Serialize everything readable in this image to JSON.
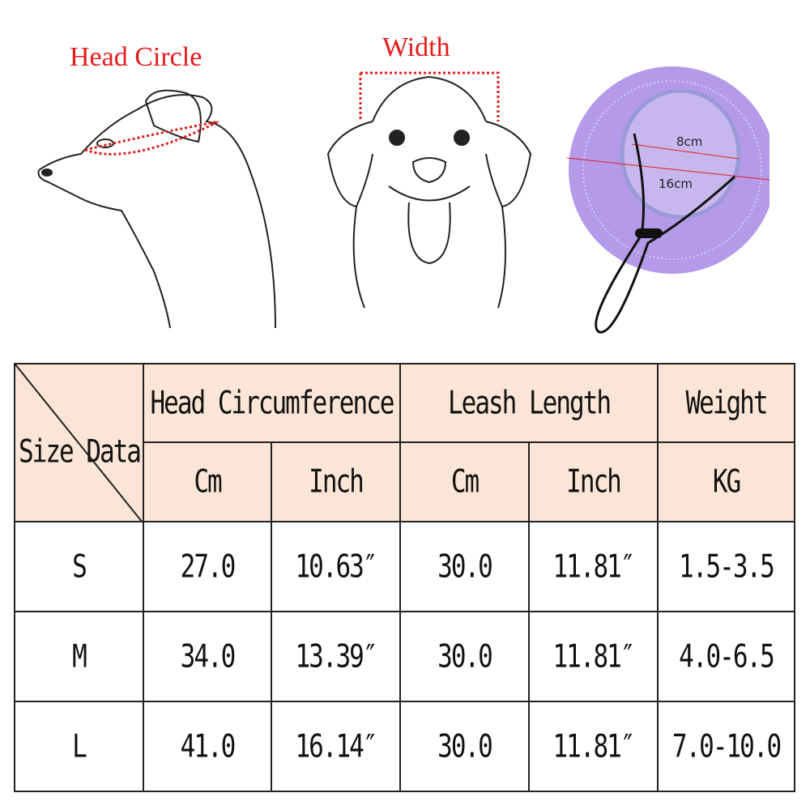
{
  "labels": {
    "head_circle": "Head Circle",
    "width": "Width",
    "hat_inner": "8cm",
    "hat_outer": "16cm"
  },
  "colors": {
    "header_bg": "#fbe5d6",
    "measure_red": "#e41c1c",
    "hat_purple": "#b49ae8"
  },
  "table": {
    "corner": "Size Data",
    "groups": [
      "Head Circumference",
      "Leash Length",
      "Weight"
    ],
    "subheaders": [
      "Cm",
      "Inch",
      "Cm",
      "Inch",
      "KG"
    ],
    "rows": [
      [
        "S",
        "27.0",
        "10.63″",
        "30.0",
        "11.81″",
        "1.5-3.5"
      ],
      [
        "M",
        "34.0",
        "13.39″",
        "30.0",
        "11.81″",
        "4.0-6.5"
      ],
      [
        "L",
        "41.0",
        "16.14″",
        "30.0",
        "11.81″",
        "7.0-10.0"
      ]
    ]
  }
}
